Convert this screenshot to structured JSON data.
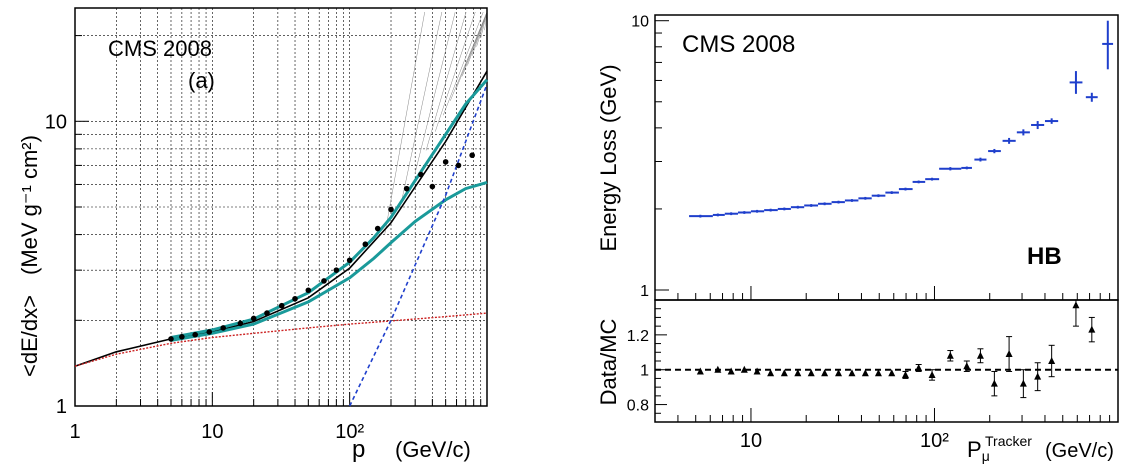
{
  "chart_data": [
    {
      "type": "line",
      "panel_label": "(a)",
      "annotation": "CMS 2008",
      "xlabel_main": "p",
      "xlabel_unit": "(GeV/c)",
      "ylabel_main": "<dE/dx>",
      "ylabel_unit": "(MeV g⁻¹ cm²)",
      "x_scale": "log",
      "y_scale": "log",
      "xlim": [
        1,
        1000
      ],
      "ylim": [
        1,
        25
      ],
      "grid": true,
      "x_ticks": [
        {
          "value": 1,
          "label": "1"
        },
        {
          "value": 10,
          "label": "10"
        },
        {
          "value": 100,
          "label": "10²"
        }
      ],
      "y_ticks": [
        {
          "value": 1,
          "label": "1"
        },
        {
          "value": 10,
          "label": "10"
        }
      ],
      "series": [
        {
          "role": "data-points",
          "color": "#000000",
          "x": [
            5.0,
            6.0,
            7.5,
            9.5,
            12,
            16,
            20,
            25,
            32,
            40,
            50,
            65,
            80,
            100,
            130,
            160,
            200,
            260,
            330,
            400,
            500,
            620,
            780
          ],
          "y": [
            1.72,
            1.75,
            1.78,
            1.82,
            1.88,
            1.95,
            2.03,
            2.12,
            2.25,
            2.38,
            2.55,
            2.75,
            3.0,
            3.25,
            3.7,
            4.2,
            4.9,
            5.8,
            6.5,
            5.9,
            7.2,
            7.0,
            7.6
          ]
        },
        {
          "role": "total-loss",
          "color": "#000000",
          "x": [
            1,
            2,
            5,
            10,
            20,
            50,
            100,
            200,
            500,
            1000
          ],
          "y": [
            1.38,
            1.55,
            1.72,
            1.82,
            1.98,
            2.4,
            3.05,
            4.4,
            8.5,
            15.0
          ]
        },
        {
          "role": "band-upper",
          "color": "#1a9a9a",
          "x": [
            5,
            10,
            20,
            50,
            100,
            150,
            200,
            300,
            500,
            700,
            1000
          ],
          "y": [
            1.74,
            1.85,
            2.02,
            2.5,
            3.2,
            3.9,
            4.6,
            6.2,
            9.0,
            11.5,
            14.0
          ]
        },
        {
          "role": "band-lower",
          "color": "#1a9a9a",
          "x": [
            5,
            10,
            20,
            50,
            100,
            150,
            200,
            300,
            500,
            700,
            1000
          ],
          "y": [
            1.7,
            1.8,
            1.94,
            2.32,
            2.82,
            3.3,
            3.75,
            4.45,
            5.3,
            5.8,
            6.1
          ]
        },
        {
          "role": "ionization",
          "color": "#cc2222",
          "x": [
            1,
            2,
            5,
            10,
            20,
            50,
            100,
            200,
            500,
            1000
          ],
          "y": [
            1.38,
            1.52,
            1.66,
            1.74,
            1.8,
            1.88,
            1.94,
            1.99,
            2.06,
            2.12
          ]
        },
        {
          "role": "radiative",
          "color": "#1f3fcc",
          "x": [
            100,
            200,
            500,
            1000
          ],
          "y": [
            1.0,
            2.0,
            5.5,
            13.5
          ]
        }
      ]
    },
    {
      "type": "scatter",
      "annotation": "CMS 2008",
      "label_hb": "HB",
      "ylabel": "Energy Loss (GeV)",
      "ratio_ylabel": "Data/MC",
      "xlabel_main": "P",
      "xlabel_sub": "μ",
      "xlabel_sup": "Tracker",
      "xlabel_unit": "(GeV/c)",
      "x_scale": "log",
      "y_scale": "log",
      "xlim": [
        3,
        1000
      ],
      "ylim": [
        1,
        10.5
      ],
      "ratio_ylim": [
        0.7,
        1.4
      ],
      "x_ticks": [
        {
          "value": 10,
          "label": "10"
        },
        {
          "value": 100,
          "label": "10²"
        }
      ],
      "y_ticks": [
        {
          "value": 1,
          "label": "1"
        },
        {
          "value": 10,
          "label": "10"
        }
      ],
      "ratio_ticks": [
        {
          "value": 0.8,
          "label": "0.8"
        },
        {
          "value": 1.0,
          "label": "1"
        },
        {
          "value": 1.2,
          "label": "1.2"
        }
      ],
      "main_series": {
        "color": "#1f3fcc",
        "points": [
          {
            "x": 5.3,
            "xlo": 4.6,
            "xhi": 6.2,
            "y": 1.88,
            "elo": 0,
            "ehi": 0
          },
          {
            "x": 6.6,
            "xlo": 6.2,
            "xhi": 7.2,
            "y": 1.9,
            "elo": 0,
            "ehi": 0
          },
          {
            "x": 7.8,
            "xlo": 7.2,
            "xhi": 8.5,
            "y": 1.92,
            "elo": 0,
            "ehi": 0
          },
          {
            "x": 9.2,
            "xlo": 8.5,
            "xhi": 10,
            "y": 1.94,
            "elo": 0,
            "ehi": 0
          },
          {
            "x": 10.8,
            "xlo": 10,
            "xhi": 11.8,
            "y": 1.96,
            "elo": 0,
            "ehi": 0
          },
          {
            "x": 12.8,
            "xlo": 11.8,
            "xhi": 14,
            "y": 1.98,
            "elo": 0,
            "ehi": 0
          },
          {
            "x": 15.2,
            "xlo": 14,
            "xhi": 16.5,
            "y": 2.0,
            "elo": 0,
            "ehi": 0
          },
          {
            "x": 18,
            "xlo": 16.5,
            "xhi": 19.5,
            "y": 2.03,
            "elo": 0,
            "ehi": 0
          },
          {
            "x": 21.3,
            "xlo": 19.5,
            "xhi": 23.2,
            "y": 2.06,
            "elo": 0,
            "ehi": 0
          },
          {
            "x": 25.2,
            "xlo": 23.2,
            "xhi": 27.5,
            "y": 2.09,
            "elo": 0,
            "ehi": 0
          },
          {
            "x": 30,
            "xlo": 27.5,
            "xhi": 32.5,
            "y": 2.12,
            "elo": 0,
            "ehi": 0
          },
          {
            "x": 35.5,
            "xlo": 32.5,
            "xhi": 38.5,
            "y": 2.15,
            "elo": 0,
            "ehi": 0
          },
          {
            "x": 42,
            "xlo": 38.5,
            "xhi": 45.5,
            "y": 2.19,
            "elo": 0,
            "ehi": 0
          },
          {
            "x": 49.5,
            "xlo": 45.5,
            "xhi": 54,
            "y": 2.24,
            "elo": 0,
            "ehi": 0
          },
          {
            "x": 58.5,
            "xlo": 54,
            "xhi": 64,
            "y": 2.3,
            "elo": 0,
            "ehi": 0
          },
          {
            "x": 69.5,
            "xlo": 64,
            "xhi": 76,
            "y": 2.37,
            "elo": 0,
            "ehi": 0
          },
          {
            "x": 82,
            "xlo": 76,
            "xhi": 89,
            "y": 2.52,
            "elo": 0.03,
            "ehi": 0.03
          },
          {
            "x": 97,
            "xlo": 89,
            "xhi": 106,
            "y": 2.58,
            "elo": 0,
            "ehi": 0
          },
          {
            "x": 122,
            "xlo": 106,
            "xhi": 140,
            "y": 2.82,
            "elo": 0.04,
            "ehi": 0.04
          },
          {
            "x": 150,
            "xlo": 140,
            "xhi": 160,
            "y": 2.84,
            "elo": 0,
            "ehi": 0
          },
          {
            "x": 178,
            "xlo": 165,
            "xhi": 192,
            "y": 3.05,
            "elo": 0.05,
            "ehi": 0.05
          },
          {
            "x": 212,
            "xlo": 196,
            "xhi": 230,
            "y": 3.28,
            "elo": 0.06,
            "ehi": 0.06
          },
          {
            "x": 255,
            "xlo": 235,
            "xhi": 277,
            "y": 3.58,
            "elo": 0.09,
            "ehi": 0.09
          },
          {
            "x": 305,
            "xlo": 281,
            "xhi": 331,
            "y": 3.85,
            "elo": 0.1,
            "ehi": 0.1
          },
          {
            "x": 365,
            "xlo": 336,
            "xhi": 396,
            "y": 4.1,
            "elo": 0.14,
            "ehi": 0.14
          },
          {
            "x": 435,
            "xlo": 400,
            "xhi": 472,
            "y": 4.24,
            "elo": 0.1,
            "ehi": 0.1
          },
          {
            "x": 590,
            "xlo": 545,
            "xhi": 640,
            "y": 5.9,
            "elo": 0.55,
            "ehi": 0.6
          },
          {
            "x": 720,
            "xlo": 668,
            "xhi": 775,
            "y": 5.2,
            "elo": 0.2,
            "ehi": 0.2
          },
          {
            "x": 880,
            "xlo": 820,
            "xhi": 940,
            "y": 8.2,
            "elo": 1.6,
            "ehi": 1.8
          }
        ]
      },
      "ratio_series": {
        "color": "#000000",
        "reference_line": 1.0,
        "points": [
          {
            "x": 5.3,
            "y": 0.99,
            "err": 0
          },
          {
            "x": 6.6,
            "y": 1.0,
            "err": 0
          },
          {
            "x": 7.8,
            "y": 0.99,
            "err": 0
          },
          {
            "x": 9.2,
            "y": 1.0,
            "err": 0
          },
          {
            "x": 10.8,
            "y": 0.99,
            "err": 0
          },
          {
            "x": 12.8,
            "y": 0.98,
            "err": 0
          },
          {
            "x": 15.2,
            "y": 0.98,
            "err": 0
          },
          {
            "x": 18,
            "y": 0.98,
            "err": 0
          },
          {
            "x": 21.3,
            "y": 0.98,
            "err": 0
          },
          {
            "x": 25.2,
            "y": 0.98,
            "err": 0
          },
          {
            "x": 30,
            "y": 0.98,
            "err": 0
          },
          {
            "x": 35.5,
            "y": 0.98,
            "err": 0
          },
          {
            "x": 42,
            "y": 0.98,
            "err": 0
          },
          {
            "x": 49.5,
            "y": 0.98,
            "err": 0
          },
          {
            "x": 58.5,
            "y": 0.98,
            "err": 0
          },
          {
            "x": 69.5,
            "y": 0.97,
            "err": 0.02
          },
          {
            "x": 82,
            "y": 1.01,
            "err": 0.02
          },
          {
            "x": 97,
            "y": 0.97,
            "err": 0.03
          },
          {
            "x": 122,
            "y": 1.08,
            "err": 0.03
          },
          {
            "x": 150,
            "y": 1.02,
            "err": 0.03
          },
          {
            "x": 178,
            "y": 1.08,
            "err": 0.04
          },
          {
            "x": 212,
            "y": 0.92,
            "err": 0.07
          },
          {
            "x": 255,
            "y": 1.09,
            "err": 0.1
          },
          {
            "x": 305,
            "y": 0.92,
            "err": 0.08
          },
          {
            "x": 365,
            "y": 0.96,
            "err": 0.08
          },
          {
            "x": 435,
            "y": 1.05,
            "err": 0.09
          },
          {
            "x": 590,
            "y": 1.37,
            "err": 0.12
          },
          {
            "x": 720,
            "y": 1.23,
            "err": 0.07
          }
        ]
      }
    }
  ]
}
